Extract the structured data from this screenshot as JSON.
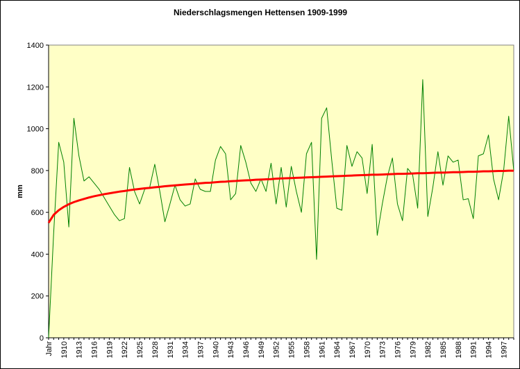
{
  "chart_data": {
    "type": "line",
    "title": "Niederschlagsmengen Hettensen 1909-1999",
    "y_label": "mm",
    "categories": [
      "Jahr",
      null,
      null,
      "1910",
      null,
      null,
      "1913",
      null,
      null,
      "1916",
      null,
      null,
      "1919",
      null,
      null,
      "1922",
      null,
      null,
      "1925",
      null,
      null,
      "1928",
      null,
      null,
      "1931",
      null,
      null,
      "1934",
      null,
      null,
      "1937",
      null,
      null,
      "1940",
      null,
      null,
      "1943",
      null,
      null,
      "1946",
      null,
      null,
      "1949",
      null,
      null,
      "1952",
      null,
      null,
      "1955",
      null,
      null,
      "1958",
      null,
      null,
      "1961",
      null,
      null,
      "1964",
      null,
      null,
      "1967",
      null,
      null,
      "1970",
      null,
      null,
      "1973",
      null,
      null,
      "1976",
      null,
      null,
      "1979",
      null,
      null,
      "1982",
      null,
      null,
      "1985",
      null,
      null,
      "1988",
      null,
      null,
      "1991",
      null,
      null,
      "1994",
      null,
      null,
      "1997",
      null,
      null
    ],
    "series": [
      {
        "color": "#008000",
        "width": 1,
        "values": [
          0,
          500,
          935,
          840,
          530,
          1050,
          870,
          750,
          770,
          740,
          710,
          670,
          630,
          590,
          560,
          570,
          815,
          700,
          640,
          710,
          720,
          830,
          700,
          555,
          640,
          730,
          660,
          630,
          640,
          760,
          710,
          700,
          700,
          850,
          915,
          880,
          660,
          690,
          920,
          840,
          740,
          700,
          760,
          700,
          835,
          640,
          815,
          625,
          820,
          700,
          600,
          880,
          935,
          375,
          1050,
          1100,
          850,
          620,
          610,
          920,
          820,
          890,
          860,
          690,
          925,
          490,
          640,
          770,
          860,
          640,
          560,
          810,
          780,
          620,
          1235,
          580,
          720,
          890,
          730,
          870,
          840,
          850,
          660,
          665,
          570,
          870,
          880,
          970,
          760,
          660,
          800,
          1060,
          800
        ]
      },
      {
        "color": "#ff0000",
        "width": 3,
        "values": [
          550,
          588,
          610,
          626,
          639,
          649,
          657,
          664,
          671,
          677,
          682,
          687,
          691,
          695,
          699,
          702,
          706,
          709,
          712,
          715,
          717,
          720,
          722,
          725,
          727,
          729,
          731,
          733,
          735,
          737,
          739,
          741,
          742,
          744,
          746,
          747,
          749,
          750,
          752,
          753,
          754,
          756,
          757,
          758,
          759,
          761,
          762,
          763,
          764,
          765,
          766,
          767,
          768,
          769,
          770,
          771,
          772,
          773,
          774,
          775,
          776,
          777,
          778,
          779,
          780,
          780,
          781,
          782,
          783,
          784,
          784,
          785,
          786,
          787,
          787,
          788,
          789,
          790,
          790,
          791,
          792,
          792,
          793,
          794,
          794,
          795,
          796,
          796,
          797,
          798,
          798,
          799,
          799
        ]
      }
    ],
    "ylim": [
      0,
      1400
    ],
    "yticks": [
      0,
      200,
      400,
      600,
      800,
      1000,
      1200,
      1400
    ],
    "plot_background": "#ffffc6"
  }
}
